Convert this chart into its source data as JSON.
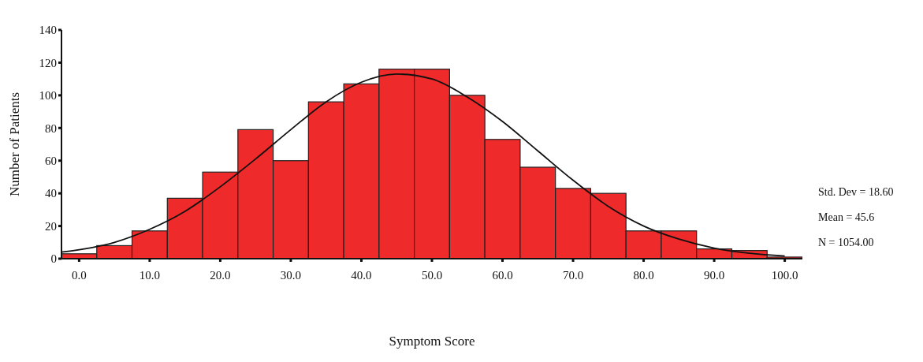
{
  "chart_data": {
    "type": "histogram",
    "xlabel": "Symptom Score",
    "ylabel": "Number of Patients",
    "bins": [
      -2.5,
      2.5,
      7.5,
      12.5,
      17.5,
      22.5,
      27.5,
      32.5,
      37.5,
      42.5,
      47.5,
      52.5,
      57.5,
      62.5,
      67.5,
      72.5,
      77.5,
      82.5,
      87.5,
      92.5,
      97.5,
      102.5
    ],
    "values": [
      3,
      8,
      17,
      37,
      53,
      79,
      60,
      96,
      107,
      116,
      116,
      100,
      73,
      56,
      43,
      40,
      17,
      17,
      6,
      5,
      1
    ],
    "color": "#ee2a2a",
    "series": [
      {
        "type": "line",
        "color": "#111111",
        "x": [
          -2.5,
          5,
          10,
          15,
          20,
          25,
          30,
          35,
          40,
          45,
          50,
          55,
          60,
          65,
          70,
          75,
          80,
          85,
          90,
          95,
          100
        ],
        "values": [
          4,
          10,
          18,
          29,
          44,
          61,
          79,
          96,
          108,
          113,
          110,
          99,
          84,
          66,
          48,
          32,
          20,
          12,
          6.5,
          3.3,
          1.6
        ]
      }
    ],
    "xlim": [
      -2.5,
      102.5
    ],
    "xticks": [
      {
        "value": 0,
        "label": "0.0"
      },
      {
        "value": 10,
        "label": "10.0"
      },
      {
        "value": 20,
        "label": "20.0"
      },
      {
        "value": 30,
        "label": "30.0"
      },
      {
        "value": 40,
        "label": "40.0"
      },
      {
        "value": 50,
        "label": "50.0"
      },
      {
        "value": 60,
        "label": "60.0"
      },
      {
        "value": 70,
        "label": "70.0"
      },
      {
        "value": 80,
        "label": "80.0"
      },
      {
        "value": 90,
        "label": "90.0"
      },
      {
        "value": 100,
        "label": "100.0"
      }
    ],
    "ylim": [
      0,
      140
    ],
    "yticks": [
      0,
      20,
      40,
      60,
      80,
      100,
      120,
      140
    ],
    "grid": false,
    "legend": false,
    "marker": "none",
    "line_style": "solid",
    "annotations": [
      "Std. Dev = 18.60",
      "Mean = 45.6",
      "N = 1054.00"
    ]
  }
}
